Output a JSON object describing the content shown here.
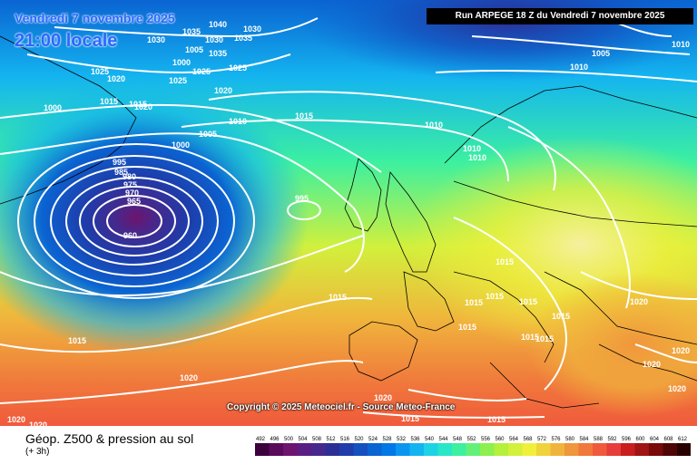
{
  "header": {
    "date": "Vendredi 7 novembre 2025",
    "time": "21:00 locale",
    "run": "Run ARPEGE 18 Z du Vendredi 7 novembre 2025"
  },
  "copyright": "Copyright © 2025 Meteociel.fr - Source Meteo-France",
  "footer": {
    "title": "Géop. Z500 & pression au sol",
    "subtitle": "(+ 3h)"
  },
  "legend": {
    "values": [
      "492",
      "496",
      "500",
      "504",
      "508",
      "512",
      "516",
      "520",
      "524",
      "528",
      "532",
      "536",
      "540",
      "544",
      "548",
      "552",
      "556",
      "560",
      "564",
      "568",
      "572",
      "576",
      "580",
      "584",
      "588",
      "592",
      "596",
      "600",
      "604",
      "608",
      "612"
    ],
    "colors": [
      "#3c003c",
      "#5a0a5a",
      "#6e146e",
      "#5a1e82",
      "#46288c",
      "#2d2d96",
      "#1e3caa",
      "#1450be",
      "#0a64d2",
      "#0078e6",
      "#0a96f0",
      "#14b4f0",
      "#1ed2e6",
      "#28e6c8",
      "#3cf0a0",
      "#64f078",
      "#8cf050",
      "#b4f03c",
      "#d2f03c",
      "#f0f03c",
      "#f0d23c",
      "#f0b43c",
      "#f0963c",
      "#f0783c",
      "#f05a3c",
      "#e63c3c",
      "#c81e1e",
      "#a01414",
      "#780a0a",
      "#500505",
      "#280000"
    ]
  },
  "isobars": [
    {
      "value": "960"
    },
    {
      "value": "965"
    },
    {
      "value": "970"
    },
    {
      "value": "975"
    },
    {
      "value": "980"
    },
    {
      "value": "985"
    },
    {
      "value": "995"
    },
    {
      "value": "995"
    },
    {
      "value": "1000"
    },
    {
      "value": "1000"
    },
    {
      "value": "1005"
    },
    {
      "value": "1005"
    },
    {
      "value": "1010"
    },
    {
      "value": "1010"
    },
    {
      "value": "1010"
    },
    {
      "value": "1010"
    },
    {
      "value": "1010"
    },
    {
      "value": "1010"
    },
    {
      "value": "1015"
    },
    {
      "value": "1015"
    },
    {
      "value": "1015"
    },
    {
      "value": "1015"
    },
    {
      "value": "1015"
    },
    {
      "value": "1015"
    },
    {
      "value": "1015"
    },
    {
      "value": "1015"
    },
    {
      "value": "1015"
    },
    {
      "value": "1015"
    },
    {
      "value": "1015"
    },
    {
      "value": "1015"
    },
    {
      "value": "1015"
    },
    {
      "value": "1020"
    },
    {
      "value": "1020"
    },
    {
      "value": "1020"
    },
    {
      "value": "1020"
    },
    {
      "value": "1020"
    },
    {
      "value": "1020"
    },
    {
      "value": "1020"
    },
    {
      "value": "1020"
    },
    {
      "value": "1020"
    },
    {
      "value": "1020"
    },
    {
      "value": "1020"
    },
    {
      "value": "1025"
    },
    {
      "value": "1025"
    },
    {
      "value": "1025"
    },
    {
      "value": "1025"
    },
    {
      "value": "1030"
    },
    {
      "value": "1030"
    },
    {
      "value": "1030"
    },
    {
      "value": "1035"
    },
    {
      "value": "1035"
    },
    {
      "value": "1035"
    },
    {
      "value": "1040"
    },
    {
      "value": "1000"
    },
    {
      "value": "1005"
    },
    {
      "value": "1015"
    },
    {
      "value": "1015"
    }
  ]
}
